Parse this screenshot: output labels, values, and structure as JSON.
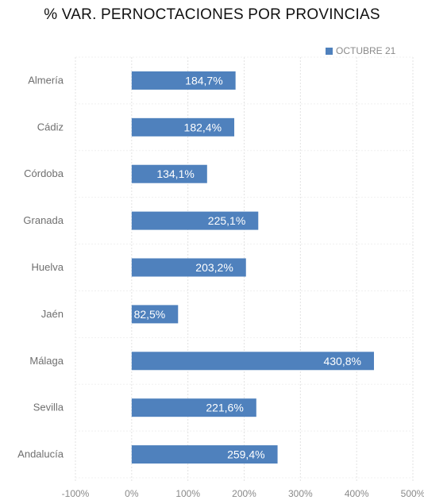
{
  "chart_data": {
    "type": "bar",
    "orientation": "horizontal",
    "title": "% VAR. PERNOCTACIONES POR PROVINCIAS",
    "categories": [
      "Almería",
      "Cádiz",
      "Córdoba",
      "Granada",
      "Huelva",
      "Jaén",
      "Málaga",
      "Sevilla",
      "Andalucía"
    ],
    "series": [
      {
        "name": "OCTUBRE 21",
        "values": [
          184.7,
          182.4,
          134.1,
          225.1,
          203.2,
          82.5,
          430.8,
          221.6,
          259.4
        ],
        "labels": [
          "184,7%",
          "182,4%",
          "134,1%",
          "225,1%",
          "203,2%",
          "82,5%",
          "430,8%",
          "221,6%",
          "259,4%"
        ]
      }
    ],
    "xlim": [
      -100,
      500
    ],
    "xticks": [
      -100,
      0,
      100,
      200,
      300,
      400,
      500
    ],
    "xtick_labels": [
      "-100%",
      "0%",
      "100%",
      "200%",
      "300%",
      "400%",
      "500%"
    ],
    "xlabel": "",
    "ylabel": "",
    "grid": true,
    "legend_position": "top-right",
    "bar_color": "#4f81bd"
  }
}
